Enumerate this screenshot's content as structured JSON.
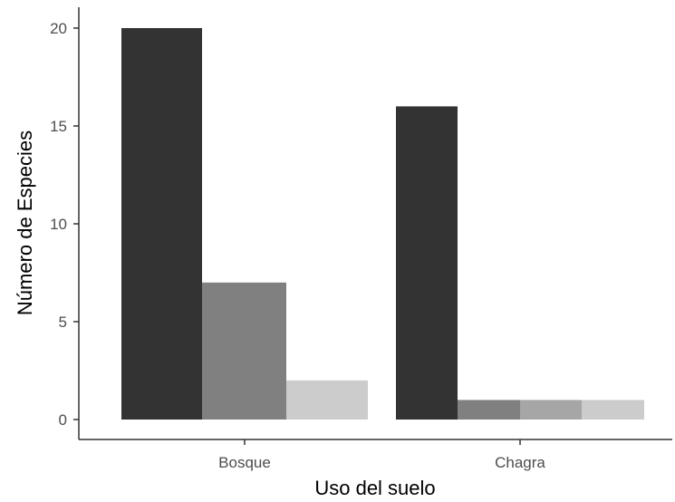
{
  "chart_data": {
    "type": "bar",
    "xlabel": "Uso del suelo",
    "ylabel": "Número de Especies",
    "ylim": [
      0,
      21
    ],
    "yticks": [
      0,
      5,
      10,
      15,
      20
    ],
    "grid": false,
    "legend": "none",
    "categories": [
      "Bosque",
      "Chagra"
    ],
    "groups": [
      {
        "category": "Bosque",
        "bars": [
          {
            "value": 20,
            "color": "#333333"
          },
          {
            "value": 7,
            "color": "#808080"
          },
          {
            "value": 2,
            "color": "#cccccc"
          }
        ]
      },
      {
        "category": "Chagra",
        "bars": [
          {
            "value": 16,
            "color": "#333333"
          },
          {
            "value": 1,
            "color": "#808080"
          },
          {
            "value": 1,
            "color": "#a6a6a6"
          },
          {
            "value": 1,
            "color": "#cccccc"
          }
        ]
      }
    ]
  }
}
